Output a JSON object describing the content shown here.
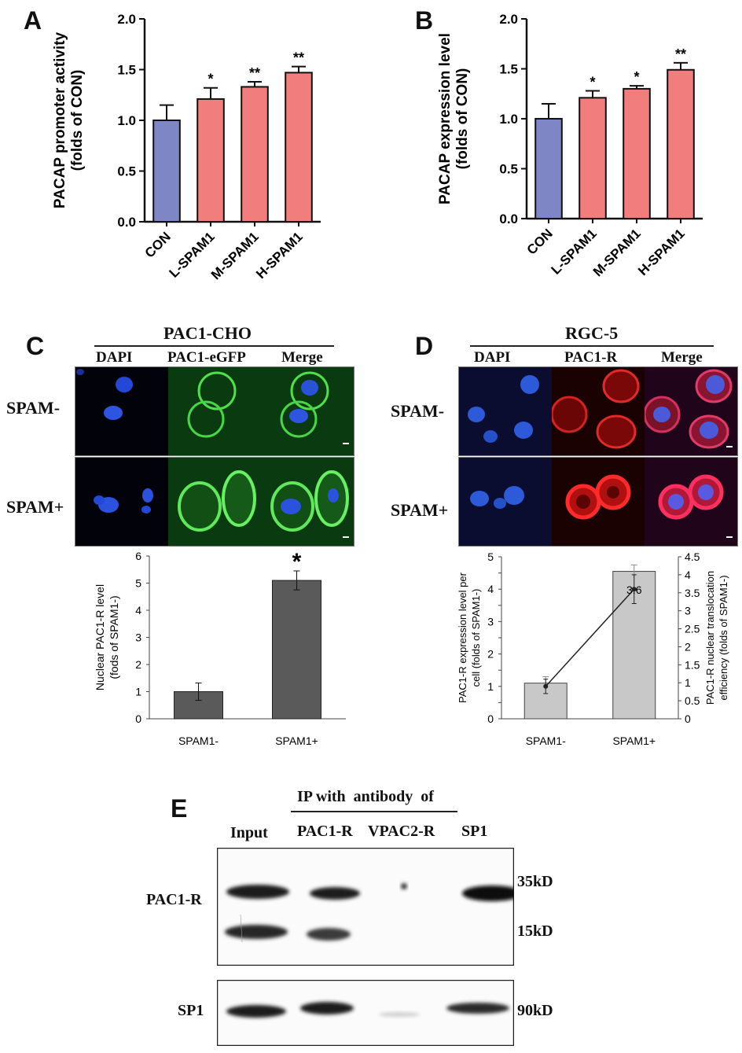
{
  "panels": {
    "A": "A",
    "B": "B",
    "C": "C",
    "D": "D",
    "E": "E"
  },
  "chart_data": [
    {
      "type": "bar",
      "panel": "A",
      "categories": [
        "CON",
        "L-SPAM1",
        "M-SPAM1",
        "H-SPAM1"
      ],
      "values": [
        1.0,
        1.21,
        1.33,
        1.47
      ],
      "errors": [
        0.15,
        0.11,
        0.05,
        0.06
      ],
      "significance": [
        "",
        "*",
        "**",
        "**"
      ],
      "colors": [
        "#7f86c6",
        "#f27d7d",
        "#f27d7d",
        "#f27d7d"
      ],
      "ylabel": "PACAP promoter activity\n(folds of CON)",
      "ylim": [
        0,
        2.0
      ],
      "yticks": [
        "0.0",
        "0.5",
        "1.0",
        "1.5",
        "2.0"
      ]
    },
    {
      "type": "bar",
      "panel": "B",
      "categories": [
        "CON",
        "L-SPAM1",
        "M-SPAM1",
        "H-SPAM1"
      ],
      "values": [
        1.0,
        1.21,
        1.3,
        1.49
      ],
      "errors": [
        0.15,
        0.07,
        0.03,
        0.07
      ],
      "significance": [
        "",
        "*",
        "*",
        "**"
      ],
      "colors": [
        "#7f86c6",
        "#f27d7d",
        "#f27d7d",
        "#f27d7d"
      ],
      "ylabel": "PACAP expression level\n(folds of CON)",
      "ylim": [
        0,
        2.0
      ],
      "yticks": [
        "0.0",
        "0.5",
        "1.0",
        "1.5",
        "2.0"
      ]
    },
    {
      "type": "bar",
      "panel": "C",
      "categories": [
        "SPAM1-",
        "SPAM1+"
      ],
      "values": [
        1.0,
        5.1
      ],
      "errors": [
        0.32,
        0.35
      ],
      "significance": [
        "",
        "*"
      ],
      "colors": [
        "#5a5a5a",
        "#5a5a5a"
      ],
      "ylabel": "Nuclear PAC1-R level\n(fods of SPAM1-)",
      "ylim": [
        0,
        6
      ],
      "yticks": [
        "0",
        "1",
        "2",
        "3",
        "4",
        "5",
        "6"
      ]
    },
    {
      "type": "bar",
      "panel": "D",
      "categories": [
        "SPAM1-",
        "SPAM1+"
      ],
      "values": [
        1.1,
        4.55
      ],
      "errors": [
        0.2,
        0.2
      ],
      "colors": [
        "#c8c8c8",
        "#c8c8c8"
      ],
      "ylabel": "PAC1-R expression level per\ncell (folds of SPAM1-)",
      "ylim": [
        0,
        5
      ],
      "yticks": [
        "0",
        "0.5",
        "1",
        "1.5",
        "2",
        "2.5",
        "3",
        "3.5",
        "4",
        "4.5",
        "5"
      ],
      "y2label": "PAC1-R nuclear translocation\nefficiency (folds of SPAM1-)",
      "y2lim": [
        0,
        4.5
      ],
      "y2ticks": [
        "0",
        "0.5",
        "1",
        "1.5",
        "2",
        "2.5",
        "3",
        "3.5",
        "4",
        "4.5"
      ],
      "line_series": {
        "values": [
          0.9,
          3.6
        ],
        "errors": [
          0.2,
          0.4
        ],
        "labels": [
          "",
          "3.6"
        ]
      }
    }
  ],
  "micro": {
    "C": {
      "title": "PAC1-CHO",
      "columns": [
        "DAPI",
        "PAC1-eGFP",
        "Merge"
      ],
      "rows": [
        "SPAM-",
        "SPAM+"
      ]
    },
    "D": {
      "title": "RGC-5",
      "columns": [
        "DAPI",
        "PAC1-R",
        "Merge"
      ],
      "rows": [
        "SPAM-",
        "SPAM+"
      ]
    }
  },
  "blot": {
    "ip_header": "IP with  antibody  of",
    "lanes": [
      "Input",
      "PAC1-R",
      "VPAC2-R",
      "SP1"
    ],
    "row_labels": [
      "PAC1-R",
      "SP1"
    ],
    "markers": [
      "35kD",
      "15kD",
      "90kD"
    ]
  },
  "colors": {
    "blue_bar": "#7f86c6",
    "red_bar": "#f27d7d",
    "dapi": "#2a50d8",
    "gfp": "#39c43a",
    "pac1r": "#d62020"
  }
}
